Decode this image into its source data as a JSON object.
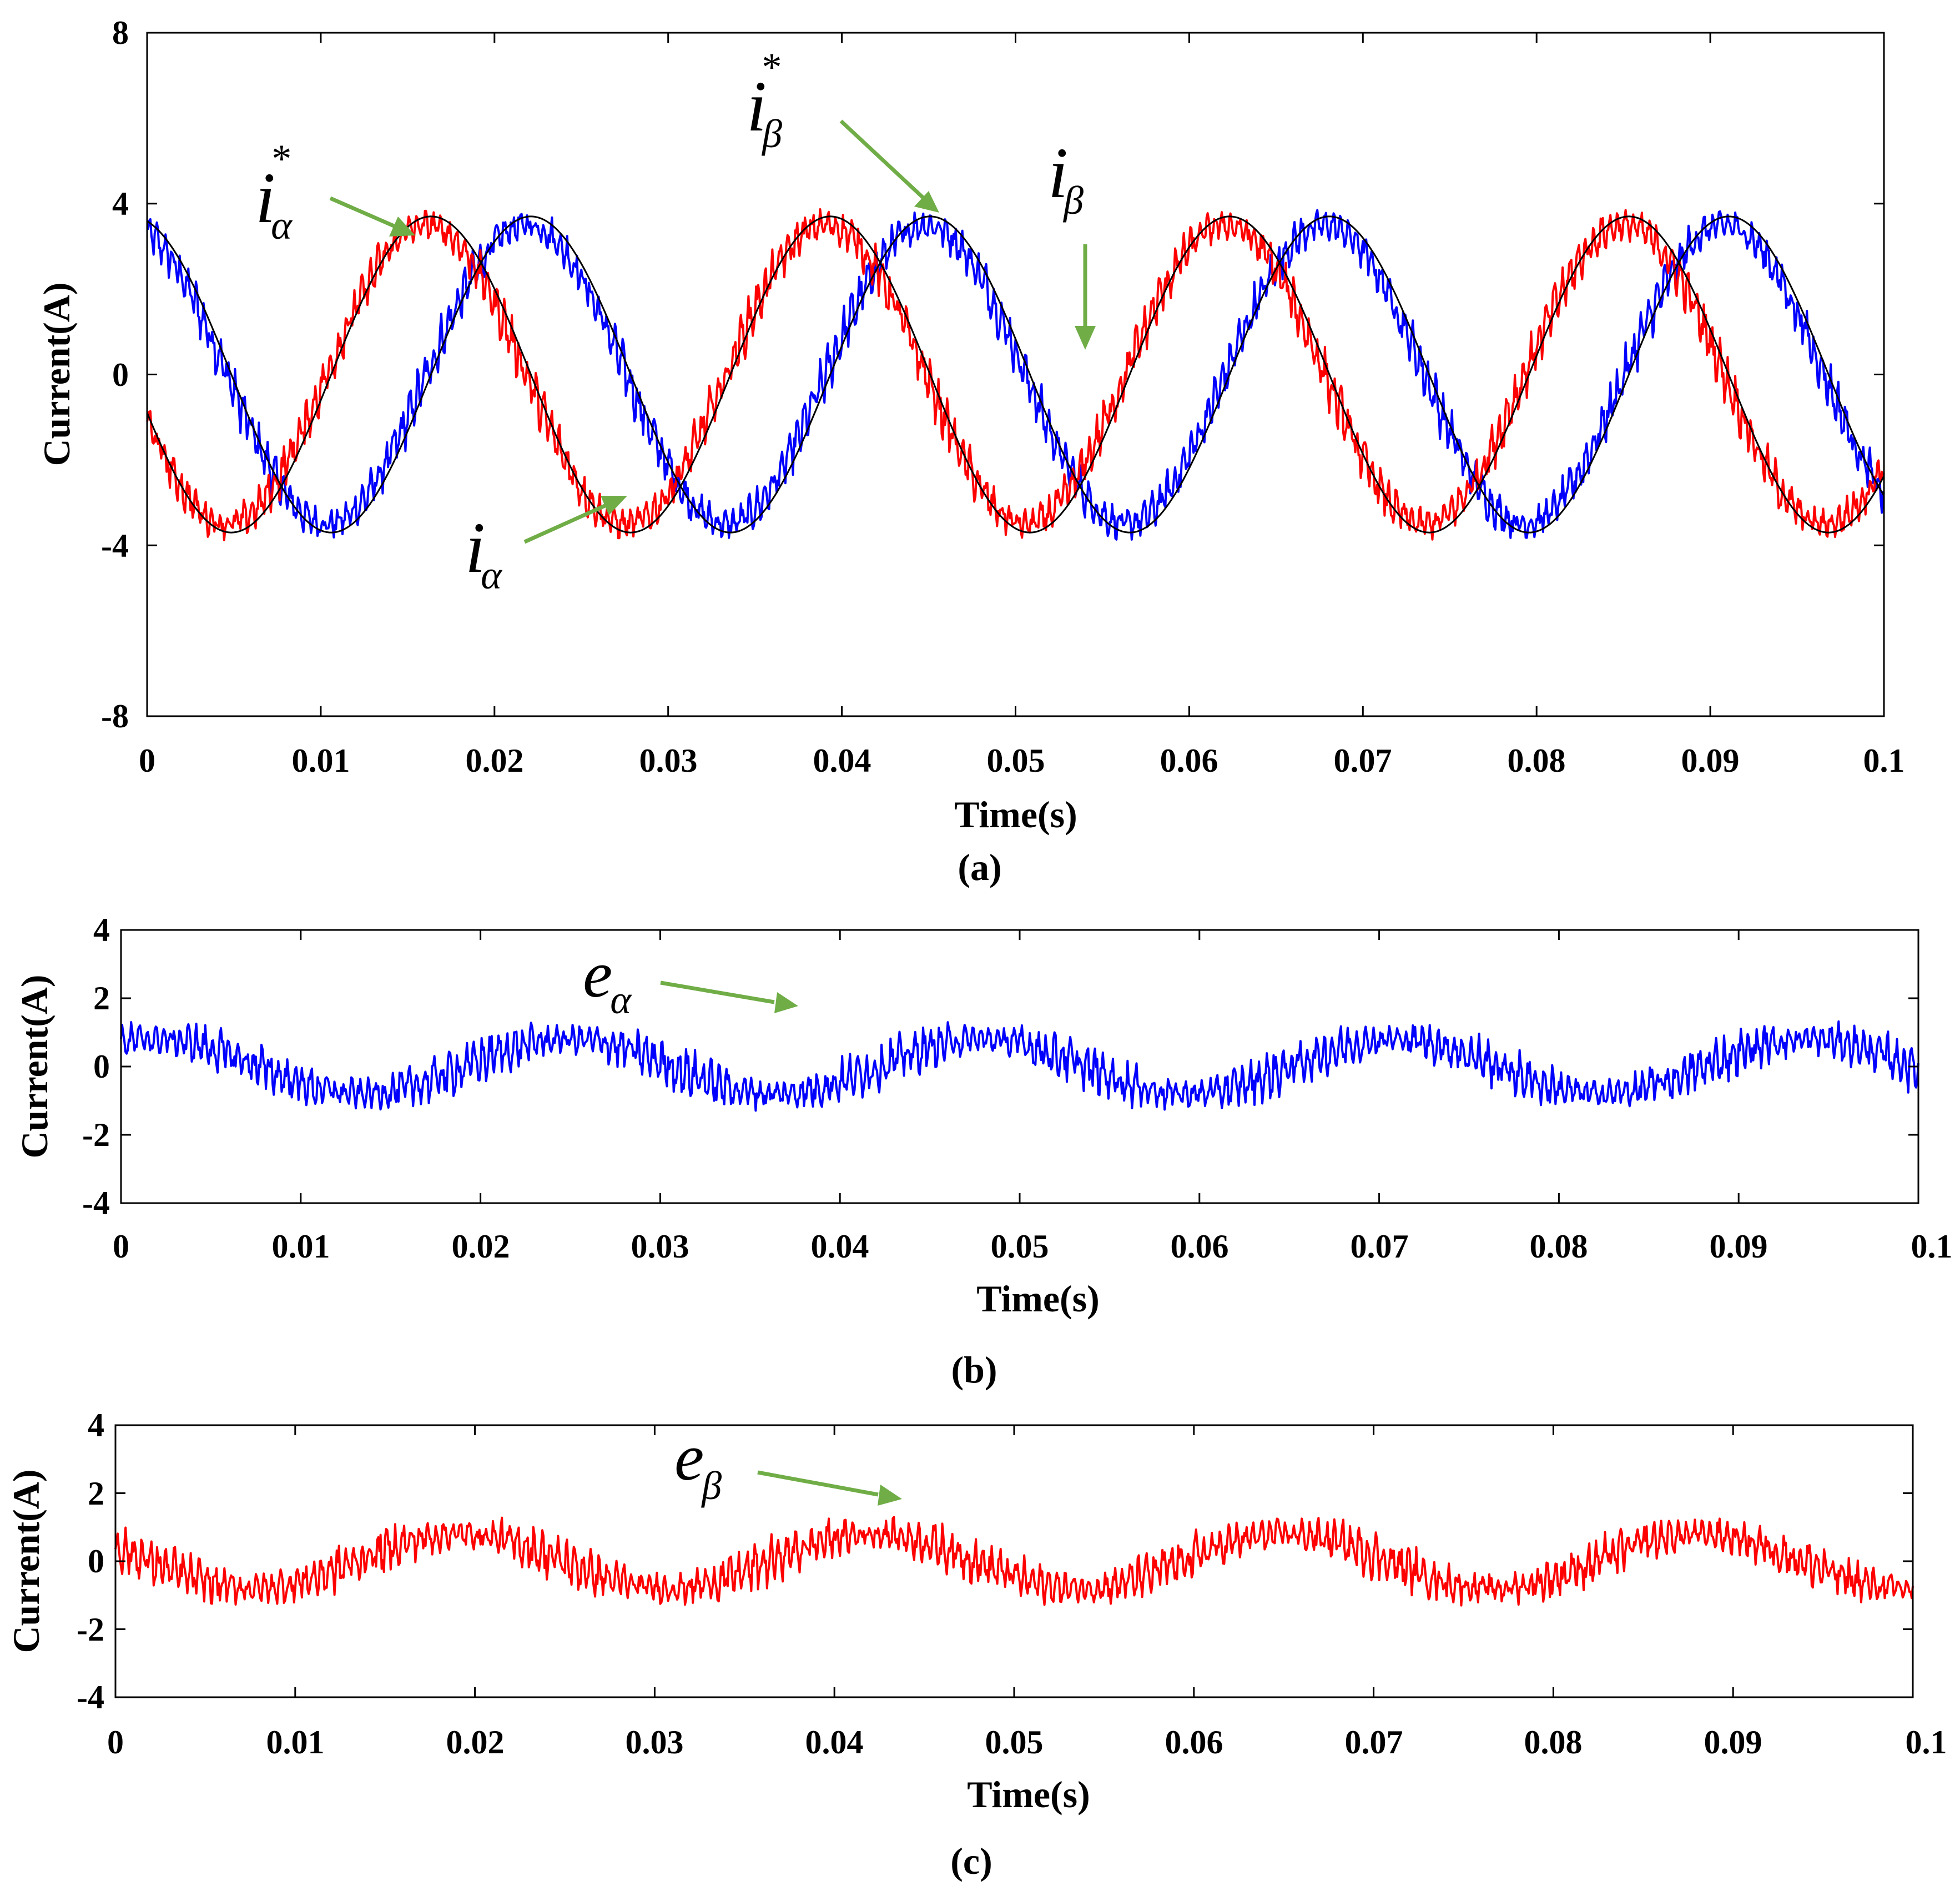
{
  "colors": {
    "blue": "#0000ff",
    "red": "#ff0000",
    "black": "#000000",
    "arrow": "#70ad47"
  },
  "chart_data": [
    {
      "type": "line",
      "caption": "(a)",
      "xlabel": "Time(s)",
      "ylabel": "Current(A)",
      "xlim": [
        0,
        0.1
      ],
      "ylim": [
        -8,
        8
      ],
      "x_ticks": [
        "0",
        "0.01",
        "0.02",
        "0.03",
        "0.04",
        "0.05",
        "0.06",
        "0.07",
        "0.08",
        "0.09",
        "0.1"
      ],
      "y_ticks": [
        "-8",
        "-4",
        "0",
        "4",
        "8"
      ],
      "series": [
        {
          "name": "i_alpha* (reference)",
          "color": "#000000",
          "amplitude": 3.7,
          "frequency_hz": 43.5,
          "phase_deg": 14,
          "noise": 0
        },
        {
          "name": "i_beta* (reference)",
          "color": "#000000",
          "amplitude": 3.7,
          "frequency_hz": 43.5,
          "phase_deg": 104,
          "noise": 0
        },
        {
          "name": "i_alpha",
          "color": "#0000ff",
          "amplitude": 3.5,
          "frequency_hz": 43.5,
          "phase_deg": 18,
          "noise": 0.6
        },
        {
          "name": "i_beta",
          "color": "#ff0000",
          "amplitude": 3.5,
          "frequency_hz": 43.5,
          "phase_deg": 108,
          "noise": 0.6
        }
      ],
      "annotations": [
        {
          "base": "i",
          "sub": "α",
          "sup": "*"
        },
        {
          "base": "i",
          "sub": "β",
          "sup": "*"
        },
        {
          "base": "i",
          "sub": "β",
          "sup": ""
        },
        {
          "base": "i",
          "sub": "α",
          "sup": ""
        }
      ]
    },
    {
      "type": "line",
      "caption": "(b)",
      "xlabel": "Time(s)",
      "ylabel": "Current(A)",
      "xlim": [
        0,
        0.1
      ],
      "ylim": [
        -4,
        4
      ],
      "x_ticks": [
        "0",
        "0.01",
        "0.02",
        "0.03",
        "0.04",
        "0.05",
        "0.06",
        "0.07",
        "0.08",
        "0.09",
        "0.1"
      ],
      "y_ticks": [
        "-4",
        "-2",
        "0",
        "2",
        "4"
      ],
      "series": [
        {
          "name": "e_alpha",
          "color": "#0000ff",
          "amplitude": 0.8,
          "frequency_hz": 43.5,
          "phase_deg": -30,
          "noise": 0.7
        }
      ],
      "annotations": [
        {
          "base": "e",
          "sub": "α",
          "sup": ""
        }
      ]
    },
    {
      "type": "line",
      "caption": "(c)",
      "xlabel": "Time(s)",
      "ylabel": "Current(A)",
      "xlim": [
        0,
        0.1
      ],
      "ylim": [
        -4,
        4
      ],
      "x_ticks": [
        "0",
        "0.01",
        "0.02",
        "0.03",
        "0.04",
        "0.05",
        "0.06",
        "0.07",
        "0.08",
        "0.09",
        "0.1"
      ],
      "y_ticks": [
        "-4",
        "-2",
        "0",
        "2",
        "4"
      ],
      "series": [
        {
          "name": "e_beta",
          "color": "#ff0000",
          "amplitude": 0.8,
          "frequency_hz": 43.5,
          "phase_deg": 60,
          "noise": 0.7
        }
      ],
      "annotations": [
        {
          "base": "e",
          "sub": "β",
          "sup": ""
        }
      ]
    }
  ]
}
